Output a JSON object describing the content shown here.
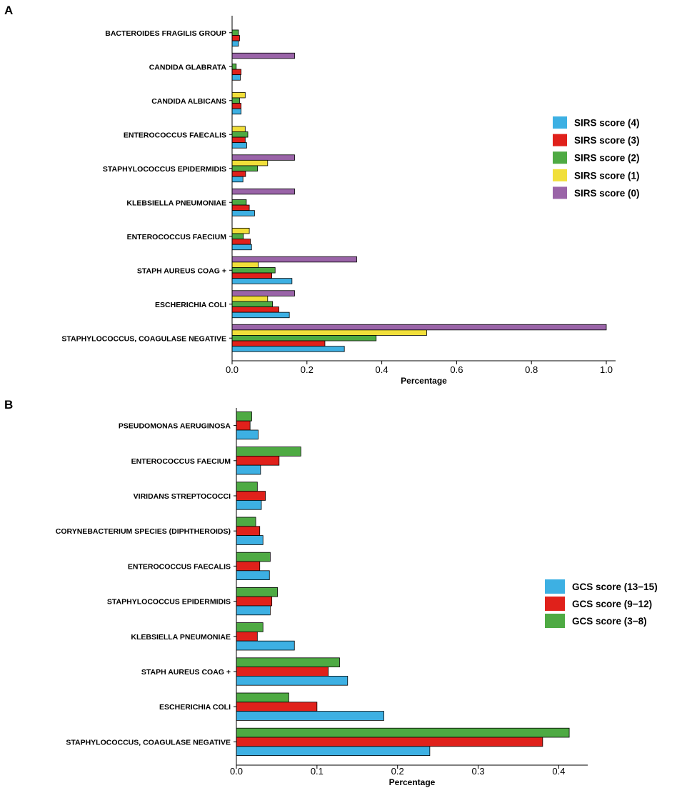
{
  "chart_data": [
    {
      "panel": "A",
      "type": "bar",
      "orientation": "horizontal",
      "xlabel": "Percentage",
      "xlim": [
        0,
        1.0
      ],
      "xticks": [
        "0.0",
        "0.2",
        "0.4",
        "0.6",
        "0.8",
        "1.0"
      ],
      "categories": [
        "BACTEROIDES FRAGILIS GROUP",
        "CANDIDA GLABRATA",
        "CANDIDA ALBICANS",
        "ENTEROCOCCUS FAECALIS",
        "STAPHYLOCOCCUS EPIDERMIDIS",
        "KLEBSIELLA PNEUMONIAE",
        "ENTEROCOCCUS FAECIUM",
        "STAPH AUREUS COAG +",
        "ESCHERICHIA COLI",
        "STAPHYLOCOCCUS, COAGULASE NEGATIVE"
      ],
      "series": [
        {
          "name": "SIRS score (4)",
          "color": "#3DB0E3",
          "values": [
            0.017,
            0.022,
            0.024,
            0.039,
            0.029,
            0.06,
            0.052,
            0.16,
            0.153,
            0.3
          ]
        },
        {
          "name": "SIRS score (3)",
          "color": "#E0211B",
          "values": [
            0.02,
            0.024,
            0.024,
            0.035,
            0.036,
            0.046,
            0.049,
            0.106,
            0.125,
            0.248
          ]
        },
        {
          "name": "SIRS score (2)",
          "color": "#4EAA43",
          "values": [
            0.017,
            0.011,
            0.02,
            0.042,
            0.068,
            0.038,
            0.03,
            0.115,
            0.108,
            0.385
          ]
        },
        {
          "name": "SIRS score (1)",
          "color": "#F1DF3A",
          "values": [
            0.0,
            0.0,
            0.035,
            0.035,
            0.095,
            0.0,
            0.046,
            0.07,
            0.095,
            0.52
          ]
        },
        {
          "name": "SIRS score (0)",
          "color": "#9A64A8",
          "values": [
            0.0,
            0.167,
            0.0,
            0.0,
            0.167,
            0.167,
            0.0,
            0.333,
            0.167,
            1.0
          ]
        }
      ],
      "legend": {
        "position": "right"
      }
    },
    {
      "panel": "B",
      "type": "bar",
      "orientation": "horizontal",
      "xlabel": "Percentage",
      "xlim": [
        0,
        0.42
      ],
      "xticks": [
        "0.0",
        "0.1",
        "0.2",
        "0.3",
        "0.4"
      ],
      "categories": [
        "PSEUDOMONAS AERUGINOSA",
        "ENTEROCOCCUS FAECIUM",
        "VIRIDANS STREPTOCOCCI",
        "CORYNEBACTERIUM SPECIES (DIPHTHEROIDS)",
        "ENTEROCOCCUS FAECALIS",
        "STAPHYLOCOCCUS EPIDERMIDIS",
        "KLEBSIELLA PNEUMONIAE",
        "STAPH AUREUS COAG +",
        "ESCHERICHIA COLI",
        "STAPHYLOCOCCUS, COAGULASE NEGATIVE"
      ],
      "series": [
        {
          "name": "GCS score (13−15)",
          "color": "#3DB0E3",
          "values": [
            0.027,
            0.03,
            0.031,
            0.033,
            0.041,
            0.042,
            0.072,
            0.138,
            0.183,
            0.24
          ]
        },
        {
          "name": "GCS score (9−12)",
          "color": "#E0211B",
          "values": [
            0.017,
            0.053,
            0.036,
            0.029,
            0.029,
            0.044,
            0.026,
            0.114,
            0.1,
            0.38
          ]
        },
        {
          "name": "GCS score (3−8)",
          "color": "#4EAA43",
          "values": [
            0.019,
            0.08,
            0.026,
            0.024,
            0.042,
            0.051,
            0.033,
            0.128,
            0.065,
            0.413
          ]
        }
      ],
      "legend": {
        "position": "right"
      }
    }
  ],
  "panels": {
    "a_label": "A",
    "b_label": "B"
  }
}
